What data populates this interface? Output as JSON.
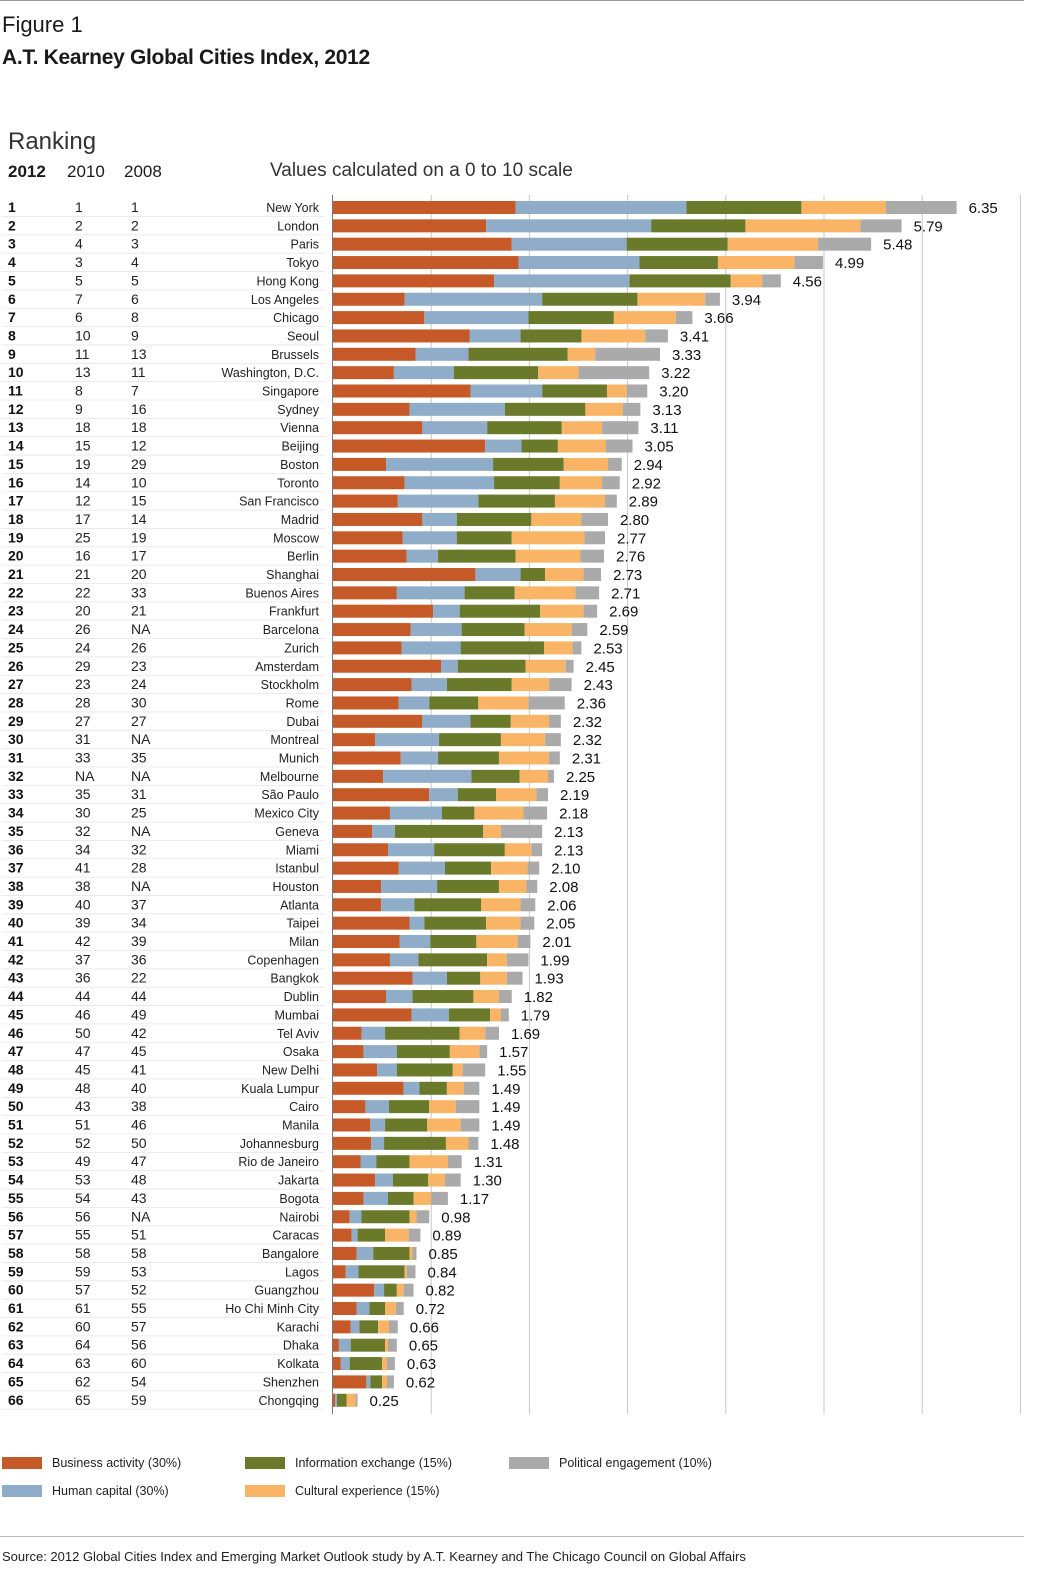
{
  "header": {
    "figure_label": "Figure 1",
    "title": "A.T. Kearney Global Cities Index, 2012",
    "ranking_label": "Ranking",
    "col_2012": "2012",
    "col_2010": "2010",
    "col_2008": "2008",
    "scale_note": "Values calculated on a 0 to 10 scale"
  },
  "legend": [
    {
      "label": "Business activity (30%)",
      "color": "#c55a28"
    },
    {
      "label": "Human capital (30%)",
      "color": "#8fadc8"
    },
    {
      "label": "Information exchange (15%)",
      "color": "#6b7a2a"
    },
    {
      "label": "Cultural experience (15%)",
      "color": "#f9b565"
    },
    {
      "label": "Political engagement (10%)",
      "color": "#aaaaaa"
    }
  ],
  "source": "Source: 2012 Global Cities Index and Emerging Market Outlook study by A.T. Kearney and The Chicago Council on Global Affairs",
  "chart_data": {
    "type": "bar",
    "orientation": "horizontal",
    "stacked": true,
    "xlim": [
      0,
      7
    ],
    "grid": true,
    "legend_position": "bottom",
    "series": [
      {
        "name": "Business activity (30%)",
        "color": "#c55a28"
      },
      {
        "name": "Human capital (30%)",
        "color": "#8fadc8"
      },
      {
        "name": "Information exchange (15%)",
        "color": "#6b7a2a"
      },
      {
        "name": "Cultural experience (15%)",
        "color": "#f9b565"
      },
      {
        "name": "Political engagement (10%)",
        "color": "#aaaaaa"
      }
    ],
    "rows": [
      {
        "r12": "1",
        "r10": "1",
        "r08": "1",
        "city": "New York",
        "total": "6.35",
        "seg": [
          1.86,
          1.74,
          1.17,
          0.86,
          0.72
        ]
      },
      {
        "r12": "2",
        "r10": "2",
        "r08": "2",
        "city": "London",
        "total": "5.79",
        "seg": [
          1.56,
          1.68,
          0.96,
          1.17,
          0.42
        ]
      },
      {
        "r12": "3",
        "r10": "4",
        "r08": "3",
        "city": "Paris",
        "total": "5.48",
        "seg": [
          1.82,
          1.17,
          1.03,
          0.92,
          0.54
        ]
      },
      {
        "r12": "4",
        "r10": "3",
        "r08": "4",
        "city": "Tokyo",
        "total": "4.99",
        "seg": [
          1.89,
          1.23,
          0.8,
          0.78,
          0.29
        ]
      },
      {
        "r12": "5",
        "r10": "5",
        "r08": "5",
        "city": "Hong Kong",
        "total": "4.56",
        "seg": [
          1.64,
          1.38,
          1.03,
          0.32,
          0.19
        ]
      },
      {
        "r12": "6",
        "r10": "7",
        "r08": "6",
        "city": "Los Angeles",
        "total": "3.94",
        "seg": [
          0.73,
          1.4,
          0.97,
          0.69,
          0.15
        ]
      },
      {
        "r12": "7",
        "r10": "6",
        "r08": "8",
        "city": "Chicago",
        "total": "3.66",
        "seg": [
          0.93,
          1.06,
          0.87,
          0.63,
          0.17
        ]
      },
      {
        "r12": "8",
        "r10": "10",
        "r08": "9",
        "city": "Seoul",
        "total": "3.41",
        "seg": [
          1.39,
          0.52,
          0.62,
          0.65,
          0.23
        ]
      },
      {
        "r12": "9",
        "r10": "11",
        "r08": "13",
        "city": "Brussels",
        "total": "3.33",
        "seg": [
          0.84,
          0.54,
          1.01,
          0.28,
          0.66
        ]
      },
      {
        "r12": "10",
        "r10": "13",
        "r08": "11",
        "city": "Washington, D.C.",
        "total": "3.22",
        "seg": [
          0.62,
          0.61,
          0.86,
          0.41,
          0.72
        ]
      },
      {
        "r12": "11",
        "r10": "8",
        "r08": "7",
        "city": "Singapore",
        "total": "3.20",
        "seg": [
          1.4,
          0.73,
          0.66,
          0.2,
          0.21
        ]
      },
      {
        "r12": "12",
        "r10": "9",
        "r08": "16",
        "city": "Sydney",
        "total": "3.13",
        "seg": [
          0.78,
          0.97,
          0.82,
          0.38,
          0.18
        ]
      },
      {
        "r12": "13",
        "r10": "18",
        "r08": "18",
        "city": "Vienna",
        "total": "3.11",
        "seg": [
          0.91,
          0.66,
          0.76,
          0.41,
          0.37
        ]
      },
      {
        "r12": "14",
        "r10": "15",
        "r08": "12",
        "city": "Beijing",
        "total": "3.05",
        "seg": [
          1.55,
          0.37,
          0.37,
          0.49,
          0.27
        ]
      },
      {
        "r12": "15",
        "r10": "19",
        "r08": "29",
        "city": "Boston",
        "total": "2.94",
        "seg": [
          0.54,
          1.09,
          0.72,
          0.45,
          0.14
        ]
      },
      {
        "r12": "16",
        "r10": "14",
        "r08": "10",
        "city": "Toronto",
        "total": "2.92",
        "seg": [
          0.73,
          0.91,
          0.67,
          0.43,
          0.18
        ]
      },
      {
        "r12": "17",
        "r10": "12",
        "r08": "15",
        "city": "San Francisco",
        "total": "2.89",
        "seg": [
          0.66,
          0.82,
          0.78,
          0.51,
          0.12
        ]
      },
      {
        "r12": "18",
        "r10": "17",
        "r08": "14",
        "city": "Madrid",
        "total": "2.80",
        "seg": [
          0.91,
          0.35,
          0.76,
          0.51,
          0.27
        ]
      },
      {
        "r12": "19",
        "r10": "25",
        "r08": "19",
        "city": "Moscow",
        "total": "2.77",
        "seg": [
          0.71,
          0.55,
          0.56,
          0.74,
          0.21
        ]
      },
      {
        "r12": "20",
        "r10": "16",
        "r08": "17",
        "city": "Berlin",
        "total": "2.76",
        "seg": [
          0.75,
          0.32,
          0.79,
          0.66,
          0.24
        ]
      },
      {
        "r12": "21",
        "r10": "21",
        "r08": "20",
        "city": "Shanghai",
        "total": "2.73",
        "seg": [
          1.45,
          0.46,
          0.25,
          0.39,
          0.18
        ]
      },
      {
        "r12": "22",
        "r10": "22",
        "r08": "33",
        "city": "Buenos Aires",
        "total": "2.71",
        "seg": [
          0.65,
          0.69,
          0.51,
          0.62,
          0.24
        ]
      },
      {
        "r12": "23",
        "r10": "20",
        "r08": "21",
        "city": "Frankfurt",
        "total": "2.69",
        "seg": [
          1.02,
          0.27,
          0.82,
          0.44,
          0.14
        ]
      },
      {
        "r12": "24",
        "r10": "26",
        "r08": "NA",
        "city": "Barcelona",
        "total": "2.59",
        "seg": [
          0.79,
          0.52,
          0.64,
          0.48,
          0.16
        ]
      },
      {
        "r12": "25",
        "r10": "24",
        "r08": "26",
        "city": "Zurich",
        "total": "2.53",
        "seg": [
          0.7,
          0.6,
          0.85,
          0.29,
          0.09
        ]
      },
      {
        "r12": "26",
        "r10": "29",
        "r08": "23",
        "city": "Amsterdam",
        "total": "2.45",
        "seg": [
          1.1,
          0.17,
          0.69,
          0.41,
          0.08
        ]
      },
      {
        "r12": "27",
        "r10": "23",
        "r08": "24",
        "city": "Stockholm",
        "total": "2.43",
        "seg": [
          0.8,
          0.36,
          0.66,
          0.38,
          0.23
        ]
      },
      {
        "r12": "28",
        "r10": "28",
        "r08": "30",
        "city": "Rome",
        "total": "2.36",
        "seg": [
          0.67,
          0.31,
          0.5,
          0.51,
          0.37
        ]
      },
      {
        "r12": "29",
        "r10": "27",
        "r08": "27",
        "city": "Dubai",
        "total": "2.32",
        "seg": [
          0.91,
          0.49,
          0.41,
          0.39,
          0.12
        ]
      },
      {
        "r12": "30",
        "r10": "31",
        "r08": "NA",
        "city": "Montreal",
        "total": "2.32",
        "seg": [
          0.43,
          0.65,
          0.63,
          0.45,
          0.16
        ]
      },
      {
        "r12": "31",
        "r10": "33",
        "r08": "35",
        "city": "Munich",
        "total": "2.31",
        "seg": [
          0.69,
          0.38,
          0.62,
          0.51,
          0.11
        ]
      },
      {
        "r12": "32",
        "r10": "NA",
        "r08": "NA",
        "city": "Melbourne",
        "total": "2.25",
        "seg": [
          0.51,
          0.9,
          0.49,
          0.29,
          0.06
        ]
      },
      {
        "r12": "33",
        "r10": "35",
        "r08": "31",
        "city": "São Paulo",
        "total": "2.19",
        "seg": [
          0.98,
          0.29,
          0.39,
          0.41,
          0.12
        ]
      },
      {
        "r12": "34",
        "r10": "30",
        "r08": "25",
        "city": "Mexico City",
        "total": "2.18",
        "seg": [
          0.58,
          0.53,
          0.33,
          0.5,
          0.24
        ]
      },
      {
        "r12": "35",
        "r10": "32",
        "r08": "NA",
        "city": "Geneva",
        "total": "2.13",
        "seg": [
          0.4,
          0.23,
          0.9,
          0.18,
          0.42
        ]
      },
      {
        "r12": "36",
        "r10": "34",
        "r08": "32",
        "city": "Miami",
        "total": "2.13",
        "seg": [
          0.56,
          0.47,
          0.72,
          0.27,
          0.11
        ]
      },
      {
        "r12": "37",
        "r10": "41",
        "r08": "28",
        "city": "Istanbul",
        "total": "2.10",
        "seg": [
          0.67,
          0.47,
          0.47,
          0.37,
          0.12
        ]
      },
      {
        "r12": "38",
        "r10": "38",
        "r08": "NA",
        "city": "Houston",
        "total": "2.08",
        "seg": [
          0.49,
          0.57,
          0.63,
          0.28,
          0.11
        ]
      },
      {
        "r12": "39",
        "r10": "40",
        "r08": "37",
        "city": "Atlanta",
        "total": "2.06",
        "seg": [
          0.49,
          0.34,
          0.68,
          0.4,
          0.15
        ]
      },
      {
        "r12": "40",
        "r10": "39",
        "r08": "34",
        "city": "Taipei",
        "total": "2.05",
        "seg": [
          0.78,
          0.15,
          0.63,
          0.35,
          0.14
        ]
      },
      {
        "r12": "41",
        "r10": "42",
        "r08": "39",
        "city": "Milan",
        "total": "2.01",
        "seg": [
          0.68,
          0.31,
          0.47,
          0.42,
          0.13
        ]
      },
      {
        "r12": "42",
        "r10": "37",
        "r08": "36",
        "city": "Copenhagen",
        "total": "1.99",
        "seg": [
          0.58,
          0.29,
          0.7,
          0.2,
          0.22
        ]
      },
      {
        "r12": "43",
        "r10": "36",
        "r08": "22",
        "city": "Bangkok",
        "total": "1.93",
        "seg": [
          0.81,
          0.35,
          0.34,
          0.27,
          0.16
        ]
      },
      {
        "r12": "44",
        "r10": "44",
        "r08": "44",
        "city": "Dublin",
        "total": "1.82",
        "seg": [
          0.54,
          0.27,
          0.62,
          0.26,
          0.13
        ]
      },
      {
        "r12": "45",
        "r10": "46",
        "r08": "49",
        "city": "Mumbai",
        "total": "1.79",
        "seg": [
          0.8,
          0.38,
          0.42,
          0.11,
          0.08
        ]
      },
      {
        "r12": "46",
        "r10": "50",
        "r08": "42",
        "city": "Tel Aviv",
        "total": "1.69",
        "seg": [
          0.29,
          0.24,
          0.76,
          0.26,
          0.14
        ]
      },
      {
        "r12": "47",
        "r10": "47",
        "r08": "45",
        "city": "Osaka",
        "total": "1.57",
        "seg": [
          0.31,
          0.34,
          0.54,
          0.3,
          0.08
        ]
      },
      {
        "r12": "48",
        "r10": "45",
        "r08": "41",
        "city": "New Delhi",
        "total": "1.55",
        "seg": [
          0.45,
          0.2,
          0.57,
          0.1,
          0.23
        ]
      },
      {
        "r12": "49",
        "r10": "48",
        "r08": "40",
        "city": "Kuala Lumpur",
        "total": "1.49",
        "seg": [
          0.72,
          0.16,
          0.28,
          0.17,
          0.16
        ]
      },
      {
        "r12": "50",
        "r10": "43",
        "r08": "38",
        "city": "Cairo",
        "total": "1.49",
        "seg": [
          0.33,
          0.24,
          0.41,
          0.27,
          0.24
        ]
      },
      {
        "r12": "51",
        "r10": "51",
        "r08": "46",
        "city": "Manila",
        "total": "1.49",
        "seg": [
          0.38,
          0.15,
          0.43,
          0.34,
          0.19
        ]
      },
      {
        "r12": "52",
        "r10": "52",
        "r08": "50",
        "city": "Johannesburg",
        "total": "1.48",
        "seg": [
          0.39,
          0.13,
          0.63,
          0.23,
          0.1
        ]
      },
      {
        "r12": "53",
        "r10": "49",
        "r08": "47",
        "city": "Rio de Janeiro",
        "total": "1.31",
        "seg": [
          0.28,
          0.16,
          0.34,
          0.39,
          0.14
        ]
      },
      {
        "r12": "54",
        "r10": "53",
        "r08": "48",
        "city": "Jakarta",
        "total": "1.30",
        "seg": [
          0.43,
          0.18,
          0.36,
          0.17,
          0.16
        ]
      },
      {
        "r12": "55",
        "r10": "54",
        "r08": "43",
        "city": "Bogota",
        "total": "1.17",
        "seg": [
          0.31,
          0.25,
          0.26,
          0.18,
          0.17
        ]
      },
      {
        "r12": "56",
        "r10": "56",
        "r08": "NA",
        "city": "Nairobi",
        "total": "0.98",
        "seg": [
          0.17,
          0.12,
          0.49,
          0.07,
          0.13
        ]
      },
      {
        "r12": "57",
        "r10": "55",
        "r08": "51",
        "city": "Caracas",
        "total": "0.89",
        "seg": [
          0.19,
          0.06,
          0.28,
          0.24,
          0.12
        ]
      },
      {
        "r12": "58",
        "r10": "58",
        "r08": "58",
        "city": "Bangalore",
        "total": "0.85",
        "seg": [
          0.24,
          0.17,
          0.37,
          0.03,
          0.04
        ]
      },
      {
        "r12": "59",
        "r10": "59",
        "r08": "53",
        "city": "Lagos",
        "total": "0.84",
        "seg": [
          0.13,
          0.13,
          0.47,
          0.02,
          0.09
        ]
      },
      {
        "r12": "60",
        "r10": "57",
        "r08": "52",
        "city": "Guangzhou",
        "total": "0.82",
        "seg": [
          0.42,
          0.1,
          0.13,
          0.07,
          0.1
        ]
      },
      {
        "r12": "61",
        "r10": "61",
        "r08": "55",
        "city": "Ho Chi Minh City",
        "total": "0.72",
        "seg": [
          0.24,
          0.13,
          0.16,
          0.11,
          0.08
        ]
      },
      {
        "r12": "62",
        "r10": "60",
        "r08": "57",
        "city": "Karachi",
        "total": "0.66",
        "seg": [
          0.18,
          0.09,
          0.19,
          0.11,
          0.09
        ]
      },
      {
        "r12": "63",
        "r10": "64",
        "r08": "56",
        "city": "Dhaka",
        "total": "0.65",
        "seg": [
          0.06,
          0.12,
          0.35,
          0.03,
          0.09
        ]
      },
      {
        "r12": "64",
        "r10": "63",
        "r08": "60",
        "city": "Kolkata",
        "total": "0.63",
        "seg": [
          0.08,
          0.09,
          0.33,
          0.05,
          0.08
        ]
      },
      {
        "r12": "65",
        "r10": "62",
        "r08": "54",
        "city": "Shenzhen",
        "total": "0.62",
        "seg": [
          0.34,
          0.04,
          0.12,
          0.05,
          0.07
        ]
      },
      {
        "r12": "66",
        "r10": "65",
        "r08": "59",
        "city": "Chongqing",
        "total": "0.25",
        "seg": [
          0.02,
          0.02,
          0.1,
          0.09,
          0.02
        ]
      }
    ]
  }
}
